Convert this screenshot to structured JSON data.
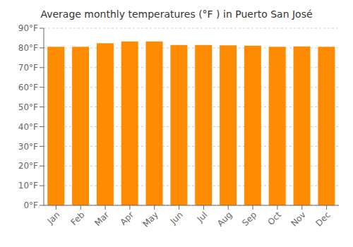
{
  "chart_data": {
    "type": "bar",
    "title": "Average monthly temperatures (°F ) in Puerto San José",
    "categories": [
      "Jan",
      "Feb",
      "Mar",
      "Apr",
      "May",
      "Jun",
      "Jul",
      "Aug",
      "Sep",
      "Oct",
      "Nov",
      "Dec"
    ],
    "values": [
      80.6,
      80.6,
      82.4,
      83.3,
      83.3,
      81.5,
      81.5,
      81.3,
      81.1,
      80.6,
      80.8,
      80.6
    ],
    "color": "#FF8C00",
    "ylim": [
      0,
      90
    ],
    "yticks": [
      {
        "value": 0,
        "label": "0°F"
      },
      {
        "value": 10,
        "label": "10°F"
      },
      {
        "value": 20,
        "label": "20°F"
      },
      {
        "value": 30,
        "label": "30°F"
      },
      {
        "value": 40,
        "label": "40°F"
      },
      {
        "value": 50,
        "label": "50°F"
      },
      {
        "value": 60,
        "label": "60°F"
      },
      {
        "value": 70,
        "label": "70°F"
      },
      {
        "value": 80,
        "label": "80°F"
      },
      {
        "value": 90,
        "label": "90°F"
      }
    ],
    "grid": true
  }
}
